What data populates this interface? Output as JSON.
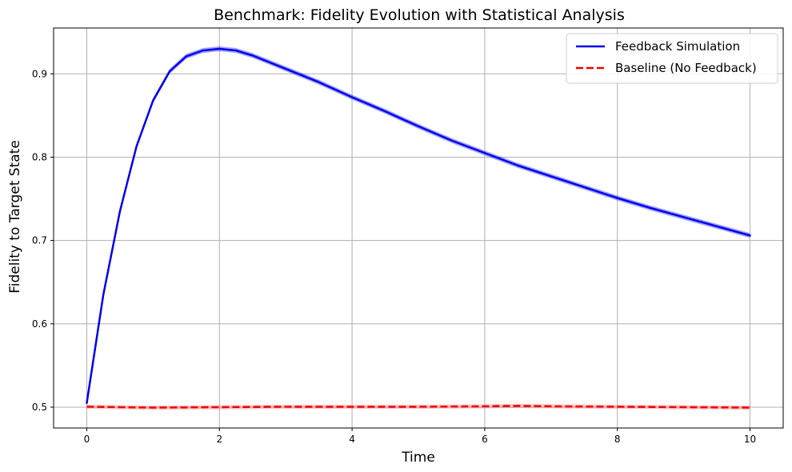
{
  "chart_data": {
    "type": "line",
    "title": "Benchmark: Fidelity Evolution with Statistical Analysis",
    "xlabel": "Time",
    "ylabel": "Fidelity to Target State",
    "xlim": [
      -0.5,
      10.5
    ],
    "ylim": [
      0.475,
      0.955
    ],
    "xticks": [
      0,
      2,
      4,
      6,
      8,
      10
    ],
    "xtick_labels": [
      "0",
      "2",
      "4",
      "6",
      "8",
      "10"
    ],
    "yticks": [
      0.5,
      0.6,
      0.7,
      0.8,
      0.9
    ],
    "ytick_labels": [
      "0.5",
      "0.6",
      "0.7",
      "0.8",
      "0.9"
    ],
    "grid": true,
    "legend_position": "top-right",
    "series": [
      {
        "name": "Feedback Simulation",
        "color": "#0000ee",
        "style": "solid",
        "band_color": "#0000ee",
        "band_halfwidth": 0.003,
        "x": [
          0,
          0.25,
          0.5,
          0.75,
          1.0,
          1.25,
          1.5,
          1.75,
          2.0,
          2.25,
          2.5,
          3.0,
          3.5,
          4.0,
          4.5,
          5.0,
          5.5,
          6.0,
          6.5,
          7.0,
          7.5,
          8.0,
          8.5,
          9.0,
          9.5,
          10.0
        ],
        "y": [
          0.505,
          0.635,
          0.735,
          0.813,
          0.868,
          0.903,
          0.921,
          0.928,
          0.93,
          0.928,
          0.922,
          0.906,
          0.89,
          0.872,
          0.855,
          0.837,
          0.82,
          0.805,
          0.79,
          0.777,
          0.764,
          0.751,
          0.739,
          0.728,
          0.717,
          0.706
        ]
      },
      {
        "name": "Baseline (No Feedback)",
        "color": "#ee0000",
        "style": "dashed",
        "band_color": "#ff6060",
        "band_halfwidth": 0.0025,
        "x": [
          0,
          0.5,
          1,
          2,
          3,
          4,
          5,
          6,
          6.5,
          7,
          8,
          9,
          10
        ],
        "y": [
          0.5005,
          0.5,
          0.4995,
          0.5,
          0.5005,
          0.5005,
          0.5005,
          0.501,
          0.5015,
          0.501,
          0.5005,
          0.5,
          0.4995
        ]
      }
    ]
  }
}
